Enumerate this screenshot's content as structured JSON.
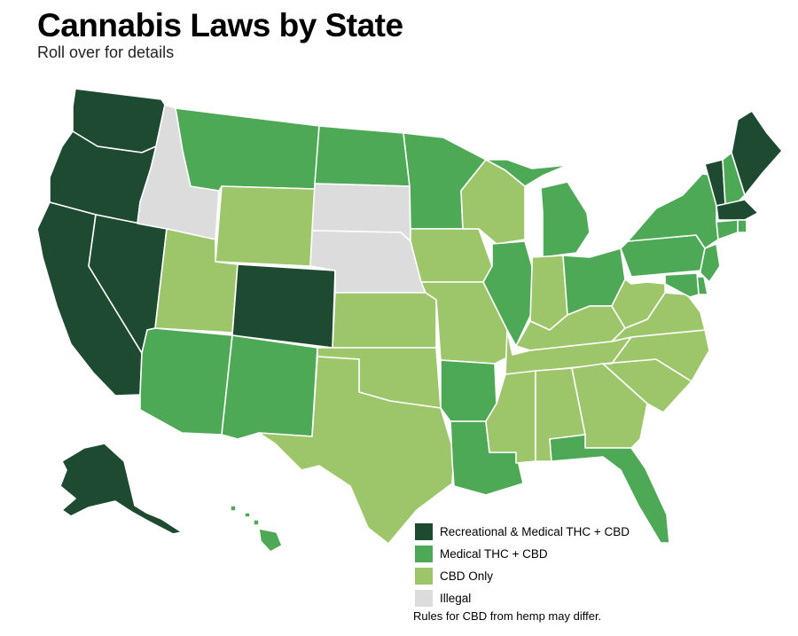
{
  "header": {
    "title": "Cannabis Laws by State",
    "subtitle": "Roll over for details"
  },
  "legend": {
    "items": [
      {
        "label": "Recreational & Medical THC + CBD",
        "color": "#1d4a31"
      },
      {
        "label": "Medical THC + CBD",
        "color": "#4ea957"
      },
      {
        "label": "CBD Only",
        "color": "#9dc66b"
      },
      {
        "label": "Illegal",
        "color": "#dcdcdc"
      }
    ]
  },
  "footnote": "Rules for CBD from hemp may differ.",
  "status_colors": {
    "rec": "#1d4a31",
    "med": "#4ea957",
    "cbd": "#9dc66b",
    "ill": "#dcdcdc"
  },
  "states": [
    {
      "code": "WA",
      "status": "rec"
    },
    {
      "code": "OR",
      "status": "rec"
    },
    {
      "code": "CA",
      "status": "rec"
    },
    {
      "code": "NV",
      "status": "rec"
    },
    {
      "code": "ID",
      "status": "ill"
    },
    {
      "code": "MT",
      "status": "med"
    },
    {
      "code": "WY",
      "status": "cbd"
    },
    {
      "code": "UT",
      "status": "cbd"
    },
    {
      "code": "CO",
      "status": "rec"
    },
    {
      "code": "AZ",
      "status": "med"
    },
    {
      "code": "NM",
      "status": "med"
    },
    {
      "code": "ND",
      "status": "med"
    },
    {
      "code": "SD",
      "status": "ill"
    },
    {
      "code": "NE",
      "status": "ill"
    },
    {
      "code": "KS",
      "status": "cbd"
    },
    {
      "code": "OK",
      "status": "cbd"
    },
    {
      "code": "TX",
      "status": "cbd"
    },
    {
      "code": "MN",
      "status": "med"
    },
    {
      "code": "IA",
      "status": "cbd"
    },
    {
      "code": "MO",
      "status": "cbd"
    },
    {
      "code": "AR",
      "status": "med"
    },
    {
      "code": "LA",
      "status": "med"
    },
    {
      "code": "WI",
      "status": "cbd"
    },
    {
      "code": "IL",
      "status": "med"
    },
    {
      "code": "MI",
      "status": "med"
    },
    {
      "code": "IN",
      "status": "cbd"
    },
    {
      "code": "OH",
      "status": "med"
    },
    {
      "code": "KY",
      "status": "cbd"
    },
    {
      "code": "TN",
      "status": "cbd"
    },
    {
      "code": "MS",
      "status": "cbd"
    },
    {
      "code": "AL",
      "status": "cbd"
    },
    {
      "code": "GA",
      "status": "cbd"
    },
    {
      "code": "FL",
      "status": "med"
    },
    {
      "code": "SC",
      "status": "cbd"
    },
    {
      "code": "NC",
      "status": "cbd"
    },
    {
      "code": "VA",
      "status": "cbd"
    },
    {
      "code": "WV",
      "status": "cbd"
    },
    {
      "code": "PA",
      "status": "med"
    },
    {
      "code": "NY",
      "status": "med"
    },
    {
      "code": "VT",
      "status": "rec"
    },
    {
      "code": "NH",
      "status": "med"
    },
    {
      "code": "ME",
      "status": "rec"
    },
    {
      "code": "MA",
      "status": "rec"
    },
    {
      "code": "CT",
      "status": "med"
    },
    {
      "code": "RI",
      "status": "med"
    },
    {
      "code": "NJ",
      "status": "med"
    },
    {
      "code": "DE",
      "status": "med"
    },
    {
      "code": "MD",
      "status": "med"
    },
    {
      "code": "AK",
      "status": "rec"
    },
    {
      "code": "HI",
      "status": "med"
    }
  ]
}
